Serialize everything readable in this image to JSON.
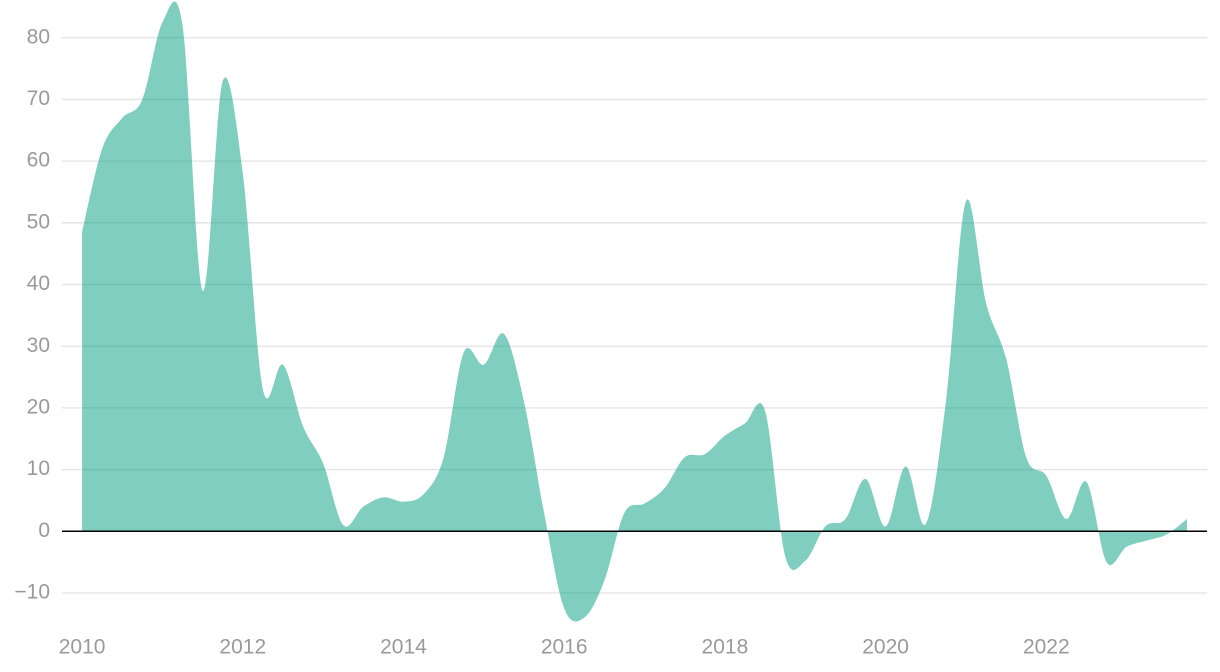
{
  "chart_data": {
    "type": "area",
    "x": [
      2010.0,
      2010.25,
      2010.5,
      2010.75,
      2011.0,
      2011.25,
      2011.5,
      2011.75,
      2012.0,
      2012.25,
      2012.5,
      2012.75,
      2013.0,
      2013.25,
      2013.5,
      2013.75,
      2014.0,
      2014.25,
      2014.5,
      2014.75,
      2015.0,
      2015.25,
      2015.5,
      2015.75,
      2016.0,
      2016.25,
      2016.5,
      2016.75,
      2017.0,
      2017.25,
      2017.5,
      2017.75,
      2018.0,
      2018.25,
      2018.5,
      2018.75,
      2019.0,
      2019.25,
      2019.5,
      2019.75,
      2020.0,
      2020.25,
      2020.5,
      2020.75,
      2021.0,
      2021.25,
      2021.5,
      2021.75,
      2022.0,
      2022.25,
      2022.5,
      2022.75,
      2023.0,
      2023.25,
      2023.5,
      2023.75
    ],
    "values": [
      48.5,
      62,
      67,
      70,
      82.5,
      82,
      39,
      73,
      58,
      23,
      27,
      17,
      11,
      1,
      4,
      5.5,
      4.8,
      6,
      12,
      29,
      27,
      32,
      21,
      3,
      -12.5,
      -14,
      -8,
      3,
      4.5,
      7,
      12,
      12.5,
      15.5,
      17.5,
      19.5,
      -4,
      -4.8,
      0.8,
      2,
      8.5,
      0.8,
      10.5,
      1.2,
      21,
      53.5,
      37,
      28,
      12,
      9,
      2,
      8,
      -5,
      -2.5,
      -1.5,
      -0.5,
      2
    ],
    "color": "#009e7f",
    "xlim": [
      2009.75,
      2024
    ],
    "ylim": [
      -16,
      84.5
    ],
    "xticks": [
      2010,
      2012,
      2014,
      2016,
      2018,
      2020,
      2022
    ],
    "yticks": [
      {
        "value": -10,
        "label": "−10"
      },
      0,
      10,
      20,
      30,
      40,
      50,
      60,
      70,
      80
    ],
    "grid": true
  }
}
